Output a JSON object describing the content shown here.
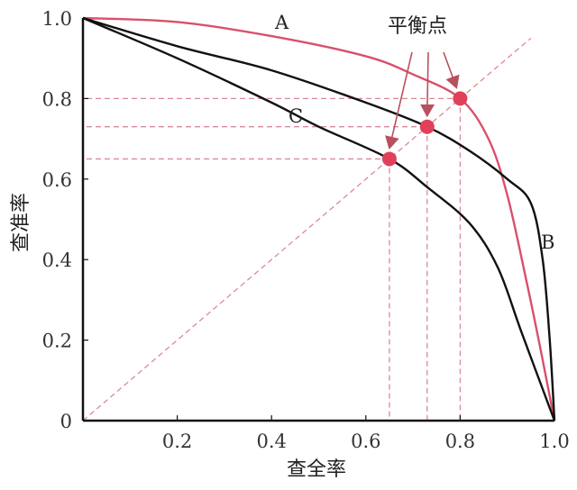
{
  "chart_data": {
    "type": "line",
    "xlabel": "查全率",
    "ylabel": "查准率",
    "xlim": [
      0,
      1
    ],
    "ylim": [
      0,
      1
    ],
    "x_ticks": [
      "0.2",
      "0.4",
      "0.6",
      "0.8",
      "1.0"
    ],
    "y_ticks": [
      "0",
      "0.2",
      "0.4",
      "0.6",
      "0.8",
      "1.0"
    ],
    "grid": false,
    "series": [
      {
        "name": "A",
        "color": "#d9506a",
        "points": [
          [
            0,
            1
          ],
          [
            0.2,
            0.99
          ],
          [
            0.4,
            0.955
          ],
          [
            0.6,
            0.905
          ],
          [
            0.7,
            0.86
          ],
          [
            0.8,
            0.8
          ],
          [
            0.86,
            0.7
          ],
          [
            0.9,
            0.56
          ],
          [
            0.94,
            0.35
          ],
          [
            0.97,
            0.18
          ],
          [
            1,
            0
          ]
        ]
      },
      {
        "name": "B",
        "color": "#111111",
        "points": [
          [
            0,
            1
          ],
          [
            0.2,
            0.93
          ],
          [
            0.4,
            0.87
          ],
          [
            0.6,
            0.79
          ],
          [
            0.73,
            0.73
          ],
          [
            0.82,
            0.67
          ],
          [
            0.9,
            0.6
          ],
          [
            0.95,
            0.54
          ],
          [
            0.975,
            0.4
          ],
          [
            0.99,
            0.2
          ],
          [
            1,
            0
          ]
        ]
      },
      {
        "name": "C",
        "color": "#111111",
        "points": [
          [
            0,
            1
          ],
          [
            0.2,
            0.9
          ],
          [
            0.4,
            0.79
          ],
          [
            0.5,
            0.73
          ],
          [
            0.65,
            0.65
          ],
          [
            0.73,
            0.58
          ],
          [
            0.82,
            0.49
          ],
          [
            0.88,
            0.38
          ],
          [
            0.93,
            0.22
          ],
          [
            1,
            0
          ]
        ]
      }
    ],
    "balance_points": [
      0.65,
      0.73,
      0.8
    ],
    "balance_point_color": "#e0405a",
    "annotation": "平衡点",
    "reference_line": "y = x (dashed)"
  }
}
